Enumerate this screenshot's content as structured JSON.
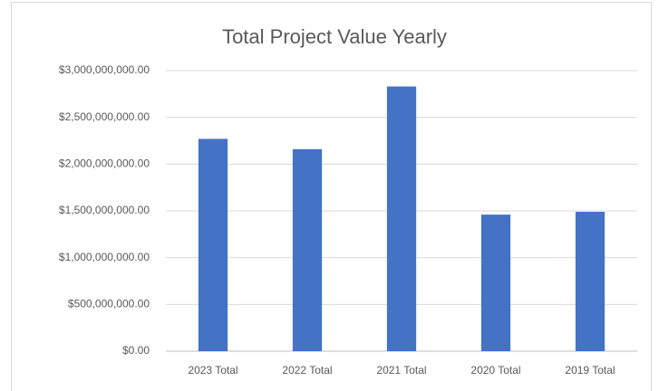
{
  "chart_data": {
    "type": "bar",
    "title": "Total Project Value Yearly",
    "categories": [
      "2023 Total",
      "2022 Total",
      "2021 Total",
      "2020 Total",
      "2019 Total"
    ],
    "values": [
      2270000000,
      2160000000,
      2830000000,
      1460000000,
      1490000000
    ],
    "color": "#4472c4",
    "ylim": [
      0,
      3000000000
    ],
    "yticks": [
      {
        "value": 0,
        "label": "$0.00"
      },
      {
        "value": 500000000,
        "label": "$500,000,000.00"
      },
      {
        "value": 1000000000,
        "label": "$1,000,000,000.00"
      },
      {
        "value": 1500000000,
        "label": "$1,500,000,000.00"
      },
      {
        "value": 2000000000,
        "label": "$2,000,000,000.00"
      },
      {
        "value": 2500000000,
        "label": "$2,500,000,000.00"
      },
      {
        "value": 3000000000,
        "label": "$3,000,000,000.00"
      }
    ],
    "grid": true
  }
}
